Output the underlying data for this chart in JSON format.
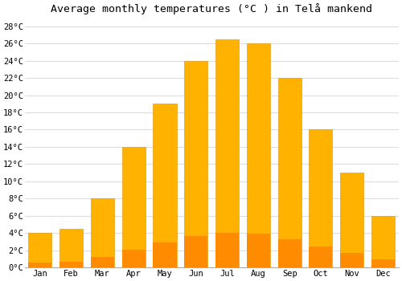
{
  "months": [
    "Jan",
    "Feb",
    "Mar",
    "Apr",
    "May",
    "Jun",
    "Jul",
    "Aug",
    "Sep",
    "Oct",
    "Nov",
    "Dec"
  ],
  "temperatures": [
    4.0,
    4.5,
    8.0,
    14.0,
    19.0,
    24.0,
    26.5,
    26.0,
    22.0,
    16.0,
    11.0,
    6.0
  ],
  "bar_color_top": "#FFB300",
  "bar_color_bottom": "#FF8C00",
  "bar_edge_color": "#E09000",
  "title": "Average monthly temperatures (°C ) in Telå mankend",
  "ylabel_ticks": [
    "0°C",
    "2°C",
    "4°C",
    "6°C",
    "8°C",
    "10°C",
    "12°C",
    "14°C",
    "16°C",
    "18°C",
    "20°C",
    "22°C",
    "24°C",
    "26°C",
    "28°C"
  ],
  "ytick_values": [
    0,
    2,
    4,
    6,
    8,
    10,
    12,
    14,
    16,
    18,
    20,
    22,
    24,
    26,
    28
  ],
  "ylim": [
    0,
    29
  ],
  "background_color": "#ffffff",
  "grid_color": "#dddddd",
  "title_fontsize": 9.5,
  "tick_fontsize": 7.5,
  "fig_width": 5.0,
  "fig_height": 3.5,
  "dpi": 100
}
